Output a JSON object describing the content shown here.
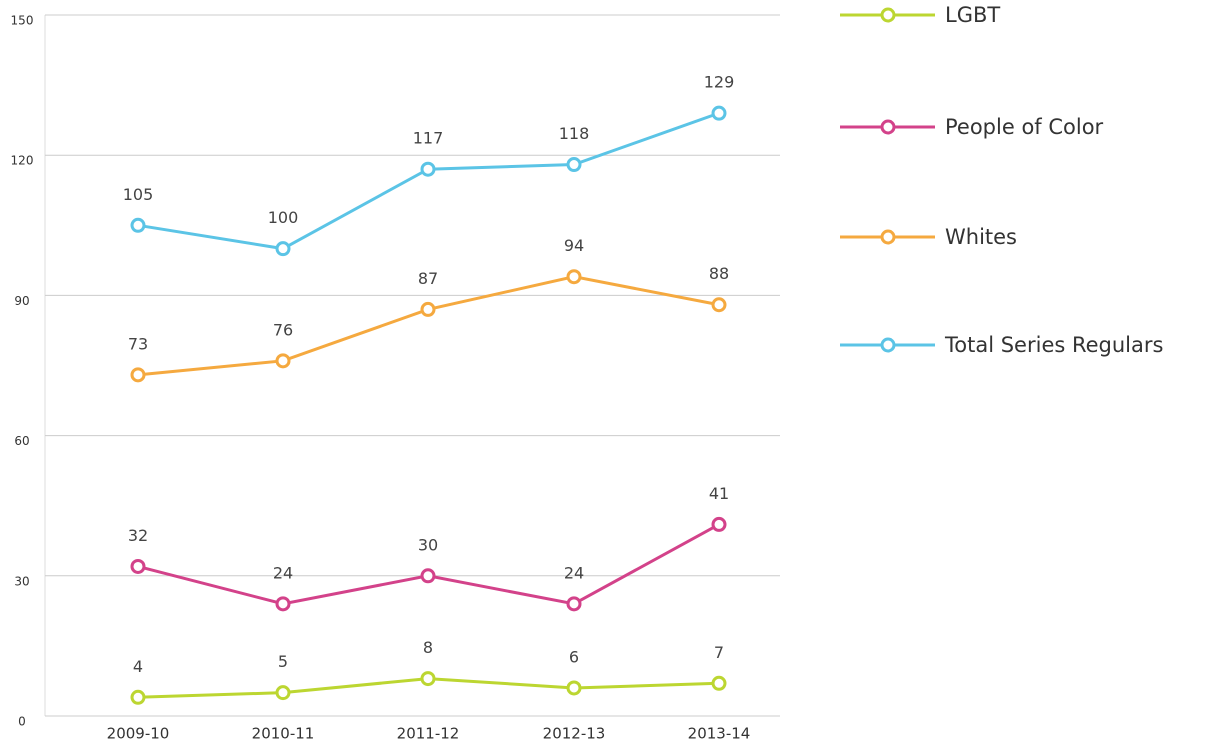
{
  "chart_data": {
    "type": "line",
    "categories": [
      "2009-10",
      "2010-11",
      "2011-12",
      "2012-13",
      "2013-14"
    ],
    "series": [
      {
        "name": "LGBT",
        "color": "#bcd631",
        "values": [
          4,
          5,
          8,
          6,
          7
        ]
      },
      {
        "name": "People of Color",
        "color": "#d3428a",
        "values": [
          32,
          24,
          30,
          24,
          41
        ]
      },
      {
        "name": "Whites",
        "color": "#f5a93f",
        "values": [
          73,
          76,
          87,
          94,
          88
        ]
      },
      {
        "name": "Total Series Regulars",
        "color": "#5bc4e6",
        "values": [
          105,
          100,
          117,
          118,
          129
        ]
      }
    ],
    "ylim": [
      0,
      150
    ],
    "yticks": [
      0,
      30,
      60,
      90,
      120,
      150
    ],
    "grid": true
  }
}
